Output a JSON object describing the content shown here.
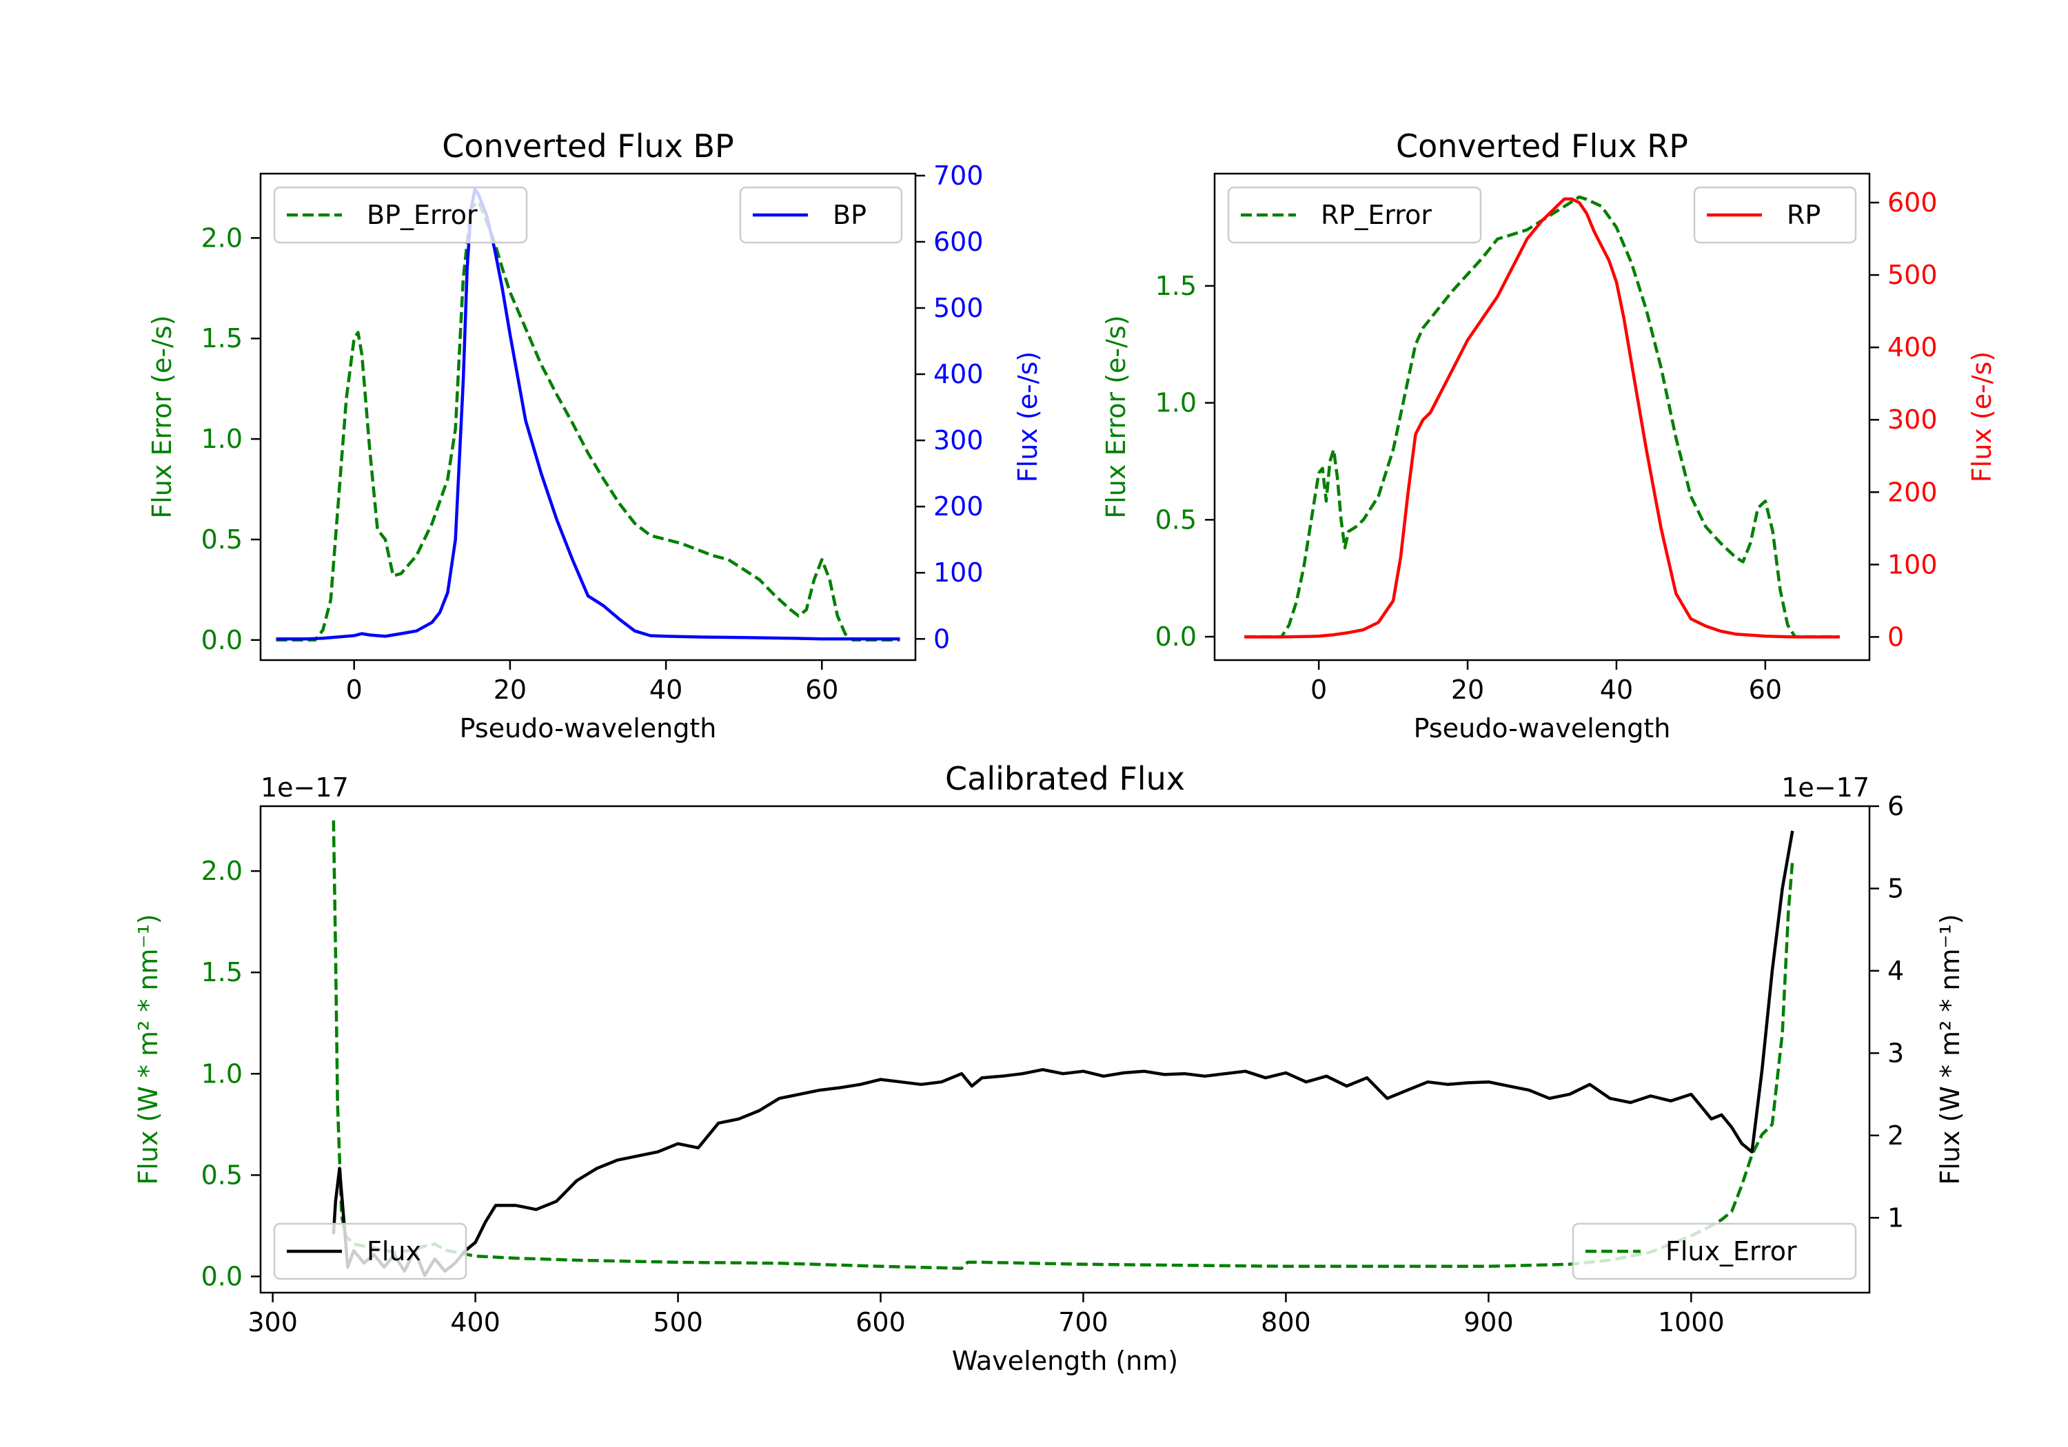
{
  "chart_data": [
    {
      "type": "line",
      "title": "Converted Flux BP",
      "xlabel": "Pseudo-wavelength",
      "ylabel_left": "Flux Error (e-/s)",
      "ylabel_right": "Flux (e-/s)",
      "xlim": [
        -12,
        72
      ],
      "ylim_left": [
        -0.1,
        2.32
      ],
      "ylim_right": [
        -32,
        703
      ],
      "xticks": [
        0,
        20,
        40,
        60
      ],
      "yticks_left": [
        0.0,
        0.5,
        1.0,
        1.5,
        2.0
      ],
      "yticks_right": [
        0,
        100,
        200,
        300,
        400,
        500,
        600,
        700
      ],
      "colors": {
        "left_axis": "#008000",
        "right_axis": "#0000ff",
        "series_error": "#008000",
        "series_flux": "#0000ff"
      },
      "legend_left": "upper-left",
      "legend_right": "upper-right",
      "series": [
        {
          "name": "BP_Error",
          "axis": "left",
          "style": "dashed",
          "x": [
            -10,
            -5,
            -4,
            -3,
            -2,
            -1,
            0,
            0.5,
            1,
            2,
            3,
            4,
            5,
            6,
            8,
            10,
            12,
            13,
            14,
            15,
            16,
            17,
            18,
            19,
            20,
            22,
            24,
            26,
            28,
            30,
            32,
            34,
            36,
            38,
            40,
            42,
            44,
            46,
            48,
            50,
            52,
            54,
            56,
            57,
            58,
            59,
            60,
            61,
            62,
            63,
            64,
            66,
            68,
            70
          ],
          "y": [
            0.0,
            0.0,
            0.05,
            0.2,
            0.7,
            1.2,
            1.5,
            1.53,
            1.42,
            0.95,
            0.55,
            0.5,
            0.32,
            0.33,
            0.42,
            0.58,
            0.8,
            1.05,
            1.8,
            2.15,
            2.18,
            2.08,
            1.98,
            1.85,
            1.73,
            1.55,
            1.37,
            1.22,
            1.08,
            0.93,
            0.8,
            0.68,
            0.58,
            0.52,
            0.5,
            0.48,
            0.45,
            0.42,
            0.4,
            0.35,
            0.3,
            0.22,
            0.15,
            0.12,
            0.15,
            0.3,
            0.4,
            0.3,
            0.12,
            0.03,
            0.0,
            0.0,
            0.0,
            0.0
          ]
        },
        {
          "name": "BP",
          "axis": "right",
          "style": "solid",
          "x": [
            -10,
            -6,
            -4,
            -2,
            0,
            1,
            2,
            3,
            4,
            6,
            8,
            10,
            11,
            12,
            13,
            14,
            14.5,
            15,
            15.5,
            16,
            17,
            18,
            19,
            20,
            22,
            24,
            26,
            28,
            30,
            32,
            34,
            36,
            38,
            40,
            44,
            50,
            56,
            60,
            64,
            70
          ],
          "y": [
            0,
            0,
            1,
            3,
            5,
            8,
            6,
            5,
            4,
            8,
            12,
            25,
            40,
            70,
            150,
            390,
            560,
            650,
            680,
            670,
            640,
            590,
            530,
            460,
            330,
            250,
            180,
            120,
            65,
            50,
            30,
            12,
            5,
            4,
            3,
            2,
            1,
            0,
            0,
            0
          ]
        }
      ]
    },
    {
      "type": "line",
      "title": "Converted Flux RP",
      "xlabel": "Pseudo-wavelength",
      "ylabel_left": "Flux Error (e-/s)",
      "ylabel_right": "Flux (e-/s)",
      "xlim": [
        -14,
        74
      ],
      "ylim_left": [
        -0.1,
        1.98
      ],
      "ylim_right": [
        -32,
        640
      ],
      "xticks": [
        0,
        20,
        40,
        60
      ],
      "yticks_left": [
        0.0,
        0.5,
        1.0,
        1.5
      ],
      "yticks_right": [
        0,
        100,
        200,
        300,
        400,
        500,
        600
      ],
      "colors": {
        "left_axis": "#008000",
        "right_axis": "#ff0000",
        "series_error": "#008000",
        "series_flux": "#ff0000"
      },
      "legend_left": "upper-left",
      "legend_right": "upper-right",
      "series": [
        {
          "name": "RP_Error",
          "axis": "left",
          "style": "dashed",
          "x": [
            -10,
            -5,
            -4,
            -3,
            -2,
            -1,
            0,
            0.5,
            1,
            1.5,
            2,
            2.5,
            3,
            3.5,
            4,
            5,
            6,
            7,
            8,
            10,
            12,
            13,
            14,
            16,
            18,
            20,
            22,
            24,
            26,
            28,
            30,
            32,
            34,
            35,
            36,
            38,
            40,
            42,
            44,
            46,
            48,
            50,
            52,
            54,
            56,
            57,
            58,
            59,
            60,
            61,
            62,
            63,
            64,
            66,
            70
          ],
          "y": [
            0.0,
            0.0,
            0.05,
            0.15,
            0.3,
            0.5,
            0.7,
            0.72,
            0.58,
            0.75,
            0.8,
            0.68,
            0.5,
            0.38,
            0.45,
            0.47,
            0.5,
            0.55,
            0.6,
            0.8,
            1.1,
            1.25,
            1.32,
            1.4,
            1.48,
            1.55,
            1.62,
            1.7,
            1.72,
            1.74,
            1.78,
            1.82,
            1.86,
            1.88,
            1.87,
            1.84,
            1.75,
            1.6,
            1.4,
            1.15,
            0.85,
            0.6,
            0.47,
            0.4,
            0.34,
            0.32,
            0.4,
            0.55,
            0.58,
            0.45,
            0.2,
            0.05,
            0.0,
            0.0,
            0.0
          ]
        },
        {
          "name": "RP",
          "axis": "right",
          "style": "solid",
          "x": [
            -10,
            -5,
            0,
            2,
            4,
            6,
            8,
            10,
            11,
            12,
            13,
            14,
            15,
            16,
            18,
            20,
            22,
            24,
            26,
            28,
            30,
            32,
            33,
            34,
            35,
            36,
            37,
            38,
            39,
            40,
            41,
            42,
            44,
            46,
            48,
            50,
            52,
            54,
            56,
            60,
            64,
            70
          ],
          "y": [
            0,
            0,
            1,
            3,
            6,
            10,
            20,
            50,
            110,
            200,
            280,
            300,
            310,
            330,
            370,
            410,
            440,
            470,
            510,
            550,
            575,
            595,
            605,
            605,
            600,
            585,
            560,
            540,
            520,
            490,
            440,
            380,
            260,
            150,
            60,
            25,
            15,
            8,
            4,
            1,
            0,
            0
          ]
        }
      ]
    },
    {
      "type": "line",
      "title": "Calibrated Flux",
      "xlabel": "Wavelength (nm)",
      "ylabel_left": "Flux (W * m² * nm⁻¹)",
      "ylabel_right": "Flux (W * m² * nm⁻¹)",
      "offset_left": "1e−17",
      "offset_right": "1e−17",
      "xlim": [
        294,
        1088
      ],
      "ylim_left": [
        -0.08,
        2.32
      ],
      "ylim_right": [
        0.09,
        6.0
      ],
      "xticks": [
        300,
        400,
        500,
        600,
        700,
        800,
        900,
        1000
      ],
      "yticks_left": [
        0.0,
        0.5,
        1.0,
        1.5,
        2.0
      ],
      "yticks_right": [
        1,
        2,
        3,
        4,
        5,
        6
      ],
      "colors": {
        "left_axis": "#008000",
        "right_axis": "#000000",
        "series_error": "#008000",
        "series_flux": "#000000"
      },
      "legend_left": "lower-left",
      "legend_right": "lower-right",
      "series": [
        {
          "name": "Flux_Error",
          "axis": "left",
          "style": "dashed",
          "x": [
            330,
            331,
            332,
            334,
            336,
            340,
            350,
            360,
            370,
            375,
            380,
            385,
            390,
            400,
            420,
            450,
            500,
            550,
            600,
            640,
            643,
            650,
            700,
            750,
            800,
            850,
            900,
            940,
            960,
            980,
            1000,
            1010,
            1015,
            1020,
            1025,
            1030,
            1035,
            1040,
            1045,
            1048,
            1050
          ],
          "y": [
            2.25,
            1.6,
            0.85,
            0.3,
            0.2,
            0.16,
            0.14,
            0.12,
            0.13,
            0.15,
            0.16,
            0.13,
            0.12,
            0.1,
            0.09,
            0.08,
            0.07,
            0.065,
            0.05,
            0.04,
            0.07,
            0.07,
            0.06,
            0.055,
            0.05,
            0.05,
            0.05,
            0.06,
            0.08,
            0.12,
            0.2,
            0.25,
            0.28,
            0.32,
            0.45,
            0.6,
            0.7,
            0.75,
            1.2,
            1.8,
            2.05
          ]
        },
        {
          "name": "Flux",
          "axis": "right",
          "style": "solid",
          "x": [
            330,
            331,
            333,
            335,
            337,
            340,
            345,
            350,
            355,
            360,
            365,
            370,
            375,
            380,
            385,
            390,
            395,
            400,
            405,
            410,
            420,
            430,
            440,
            450,
            460,
            470,
            480,
            490,
            500,
            510,
            520,
            530,
            540,
            550,
            560,
            570,
            580,
            590,
            600,
            610,
            620,
            630,
            640,
            645,
            650,
            660,
            670,
            680,
            690,
            700,
            710,
            720,
            730,
            740,
            750,
            760,
            770,
            780,
            790,
            800,
            810,
            820,
            830,
            840,
            850,
            860,
            870,
            880,
            890,
            900,
            910,
            920,
            930,
            940,
            950,
            960,
            970,
            980,
            990,
            1000,
            1005,
            1010,
            1015,
            1020,
            1025,
            1030,
            1035,
            1040,
            1045,
            1050
          ],
          "y": [
            0.8,
            1.2,
            1.6,
            1.0,
            0.4,
            0.6,
            0.45,
            0.55,
            0.4,
            0.55,
            0.35,
            0.6,
            0.3,
            0.5,
            0.35,
            0.45,
            0.6,
            0.7,
            0.95,
            1.15,
            1.15,
            1.1,
            1.2,
            1.45,
            1.6,
            1.7,
            1.75,
            1.8,
            1.9,
            1.85,
            2.15,
            2.2,
            2.3,
            2.45,
            2.5,
            2.55,
            2.58,
            2.62,
            2.68,
            2.65,
            2.62,
            2.65,
            2.75,
            2.6,
            2.7,
            2.72,
            2.75,
            2.8,
            2.75,
            2.78,
            2.72,
            2.76,
            2.78,
            2.74,
            2.75,
            2.72,
            2.75,
            2.78,
            2.7,
            2.76,
            2.65,
            2.72,
            2.6,
            2.7,
            2.45,
            2.55,
            2.65,
            2.62,
            2.64,
            2.65,
            2.6,
            2.55,
            2.45,
            2.5,
            2.62,
            2.45,
            2.4,
            2.48,
            2.42,
            2.5,
            2.35,
            2.2,
            2.25,
            2.1,
            1.9,
            1.8,
            2.8,
            4.0,
            5.0,
            5.7
          ]
        }
      ]
    }
  ]
}
